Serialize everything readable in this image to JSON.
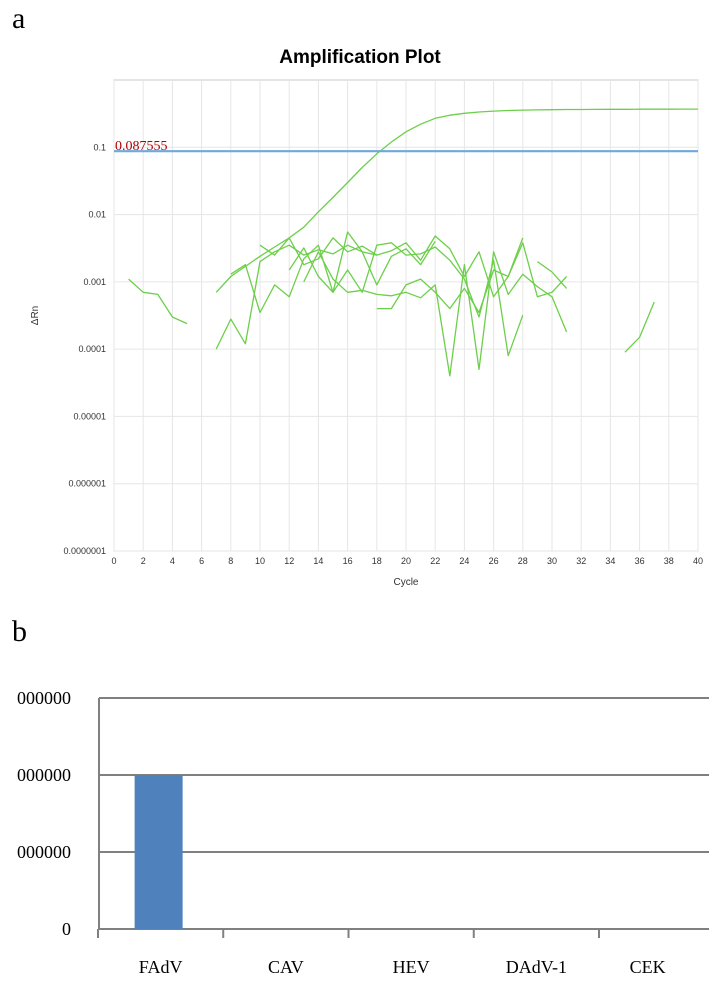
{
  "panel_a_label": "a",
  "panel_b_label": "b",
  "chart_data": [
    {
      "type": "line",
      "title": "Amplification Plot",
      "xlabel": "Cycle",
      "ylabel": "ΔRn",
      "yscale": "log",
      "xlim": [
        0,
        40
      ],
      "ylim": [
        1e-07,
        1
      ],
      "x_ticks": [
        "0",
        "2",
        "4",
        "6",
        "8",
        "10",
        "12",
        "14",
        "16",
        "18",
        "20",
        "22",
        "24",
        "26",
        "28",
        "30",
        "32",
        "34",
        "36",
        "38",
        "40"
      ],
      "y_ticks": [
        "0.1",
        "0.01",
        "0.001",
        "0.0001",
        "0.00001",
        "0.000001",
        "0.0000001"
      ],
      "grid": true,
      "colors": {
        "series": "#6ccf4a",
        "threshold": "#6fa8dc",
        "threshold_label": "#b00000"
      },
      "threshold": {
        "value": 0.087555,
        "label": "0.087555"
      },
      "series": [
        {
          "x": [
            1,
            2,
            3,
            4,
            5
          ],
          "y": [
            0.0011,
            0.0007,
            0.00065,
            0.0003,
            0.00024
          ]
        },
        {
          "x": [
            7,
            8,
            9,
            10,
            11,
            12,
            13,
            14,
            15,
            16,
            17,
            18,
            19,
            20,
            21,
            22,
            23,
            24,
            25,
            26,
            27,
            28,
            29,
            30,
            31,
            32,
            33,
            34,
            35,
            36,
            37,
            38,
            39,
            40
          ],
          "y": [
            0.0007,
            0.0012,
            0.0017,
            0.0024,
            0.0033,
            0.0045,
            0.0065,
            0.011,
            0.018,
            0.03,
            0.05,
            0.08,
            0.12,
            0.17,
            0.22,
            0.27,
            0.3,
            0.32,
            0.335,
            0.345,
            0.352,
            0.357,
            0.36,
            0.362,
            0.364,
            0.365,
            0.366,
            0.367,
            0.367,
            0.368,
            0.368,
            0.368,
            0.369,
            0.369
          ]
        },
        {
          "x": [
            7,
            8,
            9,
            10,
            11,
            12,
            13,
            14,
            15,
            16,
            17,
            18
          ],
          "y": [
            0.0001,
            0.00028,
            0.00012,
            0.002,
            0.0028,
            0.0035,
            0.0025,
            0.003,
            0.0026,
            0.0035,
            0.0028,
            0.0025
          ]
        },
        {
          "x": [
            8,
            9,
            10,
            11,
            12,
            13,
            14,
            15,
            16,
            17,
            18,
            19,
            20,
            21,
            22
          ],
          "y": [
            0.0013,
            0.0018,
            0.00035,
            0.0009,
            0.0006,
            0.0022,
            0.0035,
            0.0007,
            0.0055,
            0.0028,
            0.0009,
            0.0024,
            0.0031,
            0.0018,
            0.004
          ]
        },
        {
          "x": [
            10,
            11,
            12,
            13,
            14,
            15,
            16,
            17,
            18,
            19,
            20,
            21,
            22,
            23,
            24,
            25,
            26,
            27,
            28,
            29,
            30,
            31
          ],
          "y": [
            0.0035,
            0.0025,
            0.0045,
            0.0018,
            0.0022,
            0.0045,
            0.0028,
            0.0034,
            0.0025,
            0.0029,
            0.0038,
            0.0021,
            0.0048,
            0.0031,
            0.0012,
            0.0028,
            0.0006,
            0.0012,
            0.0038,
            0.0006,
            0.0007,
            0.0012
          ]
        },
        {
          "x": [
            12,
            13,
            14,
            15,
            16,
            17,
            18,
            19,
            20,
            21,
            22,
            23,
            24,
            25,
            26,
            27,
            28
          ],
          "y": [
            0.0015,
            0.0032,
            0.0012,
            0.0007,
            0.0015,
            0.0007,
            0.0035,
            0.0038,
            0.0025,
            0.0026,
            0.0033,
            0.0021,
            0.0011,
            0.0003,
            0.0021,
            8e-05,
            0.00032
          ]
        },
        {
          "x": [
            13,
            14,
            15,
            16,
            17,
            18,
            19,
            20,
            21,
            22,
            23,
            24,
            25,
            26,
            27,
            28,
            29,
            30,
            31
          ],
          "y": [
            0.001,
            0.0028,
            0.0011,
            0.0007,
            0.00075,
            0.00065,
            0.00062,
            0.0007,
            0.00058,
            0.0009,
            4e-05,
            0.0018,
            5e-05,
            0.0028,
            0.00065,
            0.0013,
            0.00085,
            0.0006,
            0.00018
          ]
        },
        {
          "x": [
            18,
            19,
            20,
            21,
            22,
            23,
            24,
            25,
            26,
            27,
            28
          ],
          "y": [
            0.0004,
            0.0004,
            0.0009,
            0.0011,
            0.0007,
            0.0004,
            0.0008,
            0.00035,
            0.0015,
            0.0012,
            0.0045
          ]
        },
        {
          "x": [
            29,
            30,
            31
          ],
          "y": [
            0.002,
            0.0014,
            0.0008
          ]
        },
        {
          "x": [
            35,
            36,
            37
          ],
          "y": [
            9e-05,
            0.00015,
            0.0005
          ]
        }
      ]
    },
    {
      "type": "bar",
      "categories": [
        "FAdV",
        "CAV",
        "HEV",
        "DAdV-1",
        "CEK"
      ],
      "values": [
        200000,
        0,
        0,
        0,
        0
      ],
      "y_tick_labels": [
        "000000",
        "000000",
        "000000",
        "0"
      ],
      "y_tick_values": [
        300000,
        200000,
        100000,
        0
      ],
      "ylim": [
        0,
        300000
      ],
      "grid": true,
      "colors": {
        "bar": "#4f81bd",
        "grid": "#808080"
      }
    }
  ]
}
